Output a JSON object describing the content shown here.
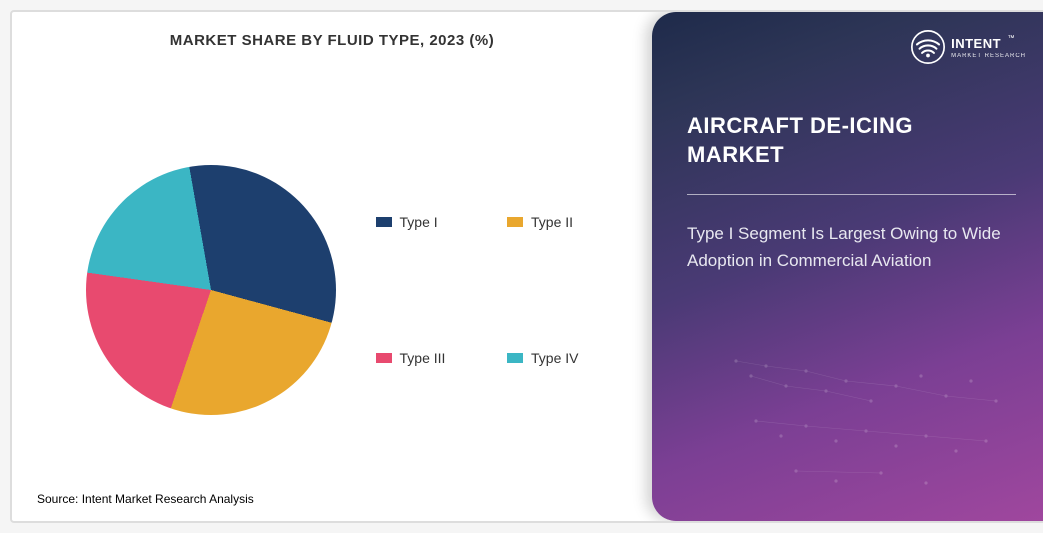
{
  "chart": {
    "title": "MARKET SHARE BY FLUID TYPE, 2023 (%)",
    "type": "pie",
    "slices": [
      {
        "label": "Type I",
        "value": 32,
        "color": "#1d3f6e"
      },
      {
        "label": "Type II",
        "value": 26,
        "color": "#e9a72e"
      },
      {
        "label": "Type III",
        "value": 22,
        "color": "#e84a6f"
      },
      {
        "label": "Type IV",
        "value": 20,
        "color": "#3bb6c4"
      }
    ],
    "start_angle_deg": -10,
    "background_color": "#ffffff",
    "label_fontsize": 14,
    "title_fontsize": 15,
    "legend_swatch_w": 16,
    "legend_swatch_h": 10
  },
  "source_line": "Source: Intent Market Research Analysis",
  "right": {
    "headline_line1": "AIRCRAFT DE-ICING",
    "headline_line2": "MARKET",
    "sub": "Type I Segment Is Largest Owing to Wide Adoption in Commercial Aviation",
    "logo_main": "INTENT",
    "logo_sub": "MARKET RESEARCH",
    "tm": "™",
    "bg_gradient_start": "#1e2a4a",
    "bg_gradient_end": "#a0479e",
    "logo_stroke": "#ffffff"
  }
}
